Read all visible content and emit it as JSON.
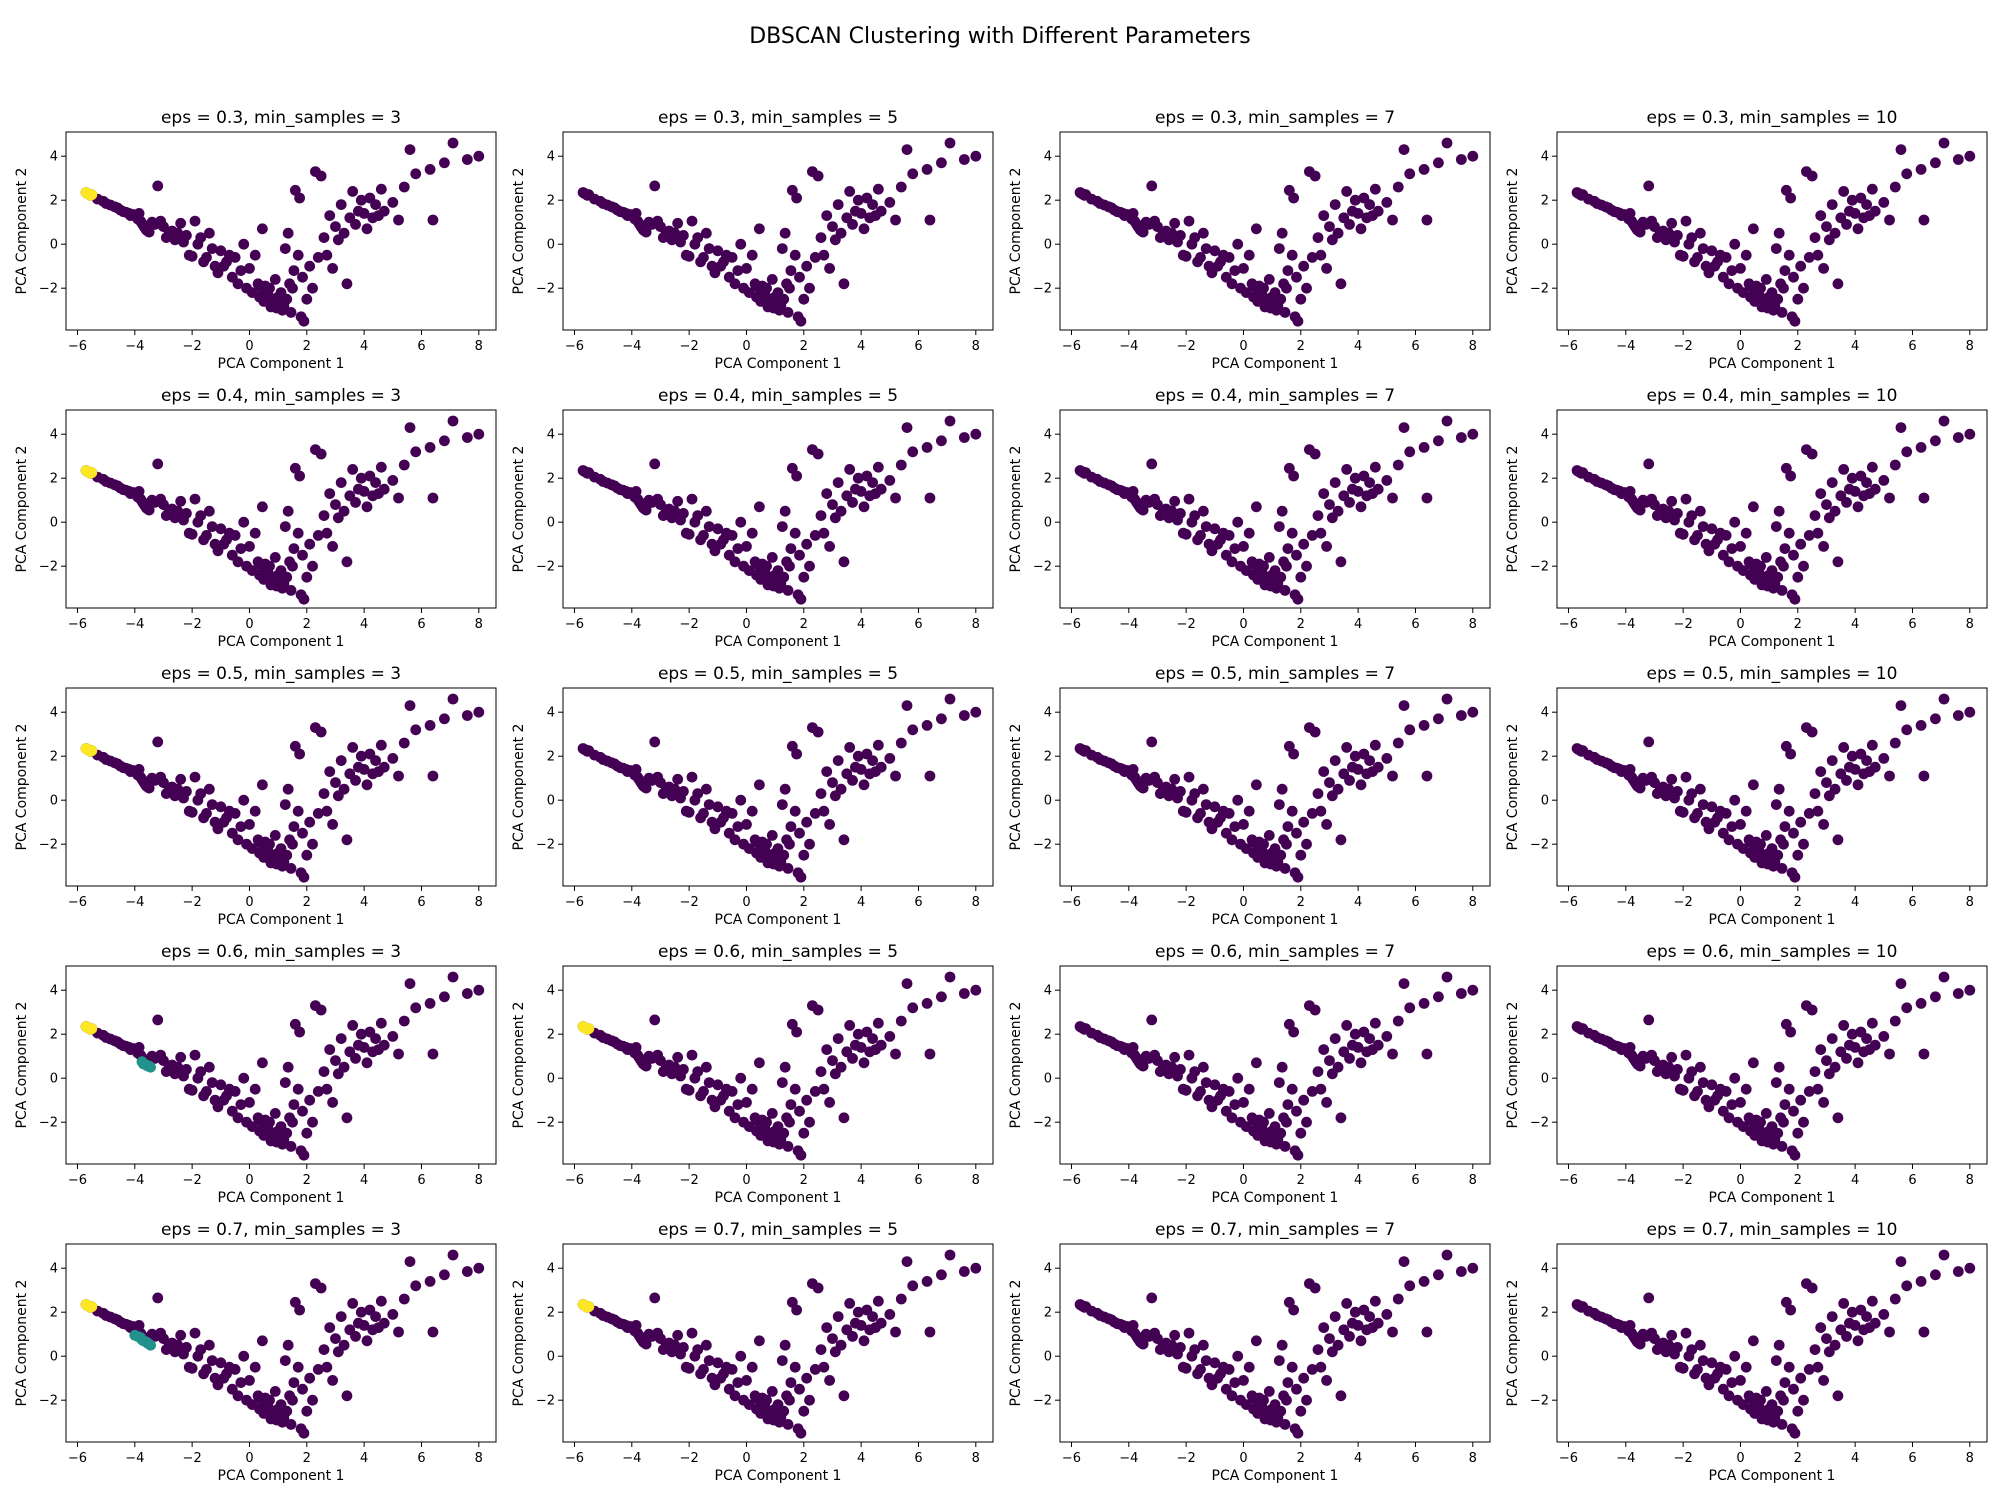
{
  "figure": {
    "title": "DBSCAN Clustering with Different Parameters"
  },
  "colors": {
    "noise_cluster": "#440154",
    "cluster_a": "#21918c",
    "cluster_b": "#fde725"
  },
  "chart_data": {
    "type": "scatter",
    "grid": false,
    "xlabel": "PCA Component 1",
    "ylabel": "PCA Component 2",
    "xlim": [
      -6.4,
      8.6
    ],
    "ylim": [
      -3.9,
      5.1
    ],
    "xticks": [
      -6,
      -4,
      -2,
      0,
      2,
      4,
      6,
      8
    ],
    "yticks": [
      -2,
      0,
      2,
      4
    ],
    "points": [
      [
        -5.7,
        2.35
      ],
      [
        -5.6,
        2.28
      ],
      [
        -5.5,
        2.25
      ],
      [
        -5.65,
        2.3
      ],
      [
        -5.55,
        2.22
      ],
      [
        -5.3,
        2.05
      ],
      [
        -5.1,
        1.95
      ],
      [
        -5.0,
        1.85
      ],
      [
        -4.85,
        1.78
      ],
      [
        -4.7,
        1.7
      ],
      [
        -4.6,
        1.65
      ],
      [
        -4.5,
        1.55
      ],
      [
        -4.4,
        1.48
      ],
      [
        -4.3,
        1.45
      ],
      [
        -4.2,
        1.4
      ],
      [
        -4.15,
        1.3
      ],
      [
        -4.05,
        1.35
      ],
      [
        -3.95,
        1.25
      ],
      [
        -3.9,
        1.15
      ],
      [
        -3.85,
        1.4
      ],
      [
        -3.8,
        1.05
      ],
      [
        -3.75,
        0.95
      ],
      [
        -3.7,
        0.85
      ],
      [
        -3.65,
        0.75
      ],
      [
        -3.6,
        0.65
      ],
      [
        -3.55,
        0.6
      ],
      [
        -3.5,
        0.55
      ],
      [
        -3.4,
        1.0
      ],
      [
        -3.3,
        0.9
      ],
      [
        -3.2,
        2.65
      ],
      [
        -3.1,
        1.05
      ],
      [
        -3.0,
        0.8
      ],
      [
        -2.9,
        0.3
      ],
      [
        -2.8,
        0.55
      ],
      [
        -2.7,
        0.6
      ],
      [
        -2.6,
        0.2
      ],
      [
        -2.5,
        0.5
      ],
      [
        -2.4,
        0.95
      ],
      [
        -2.3,
        0.1
      ],
      [
        -2.2,
        0.4
      ],
      [
        -2.1,
        -0.5
      ],
      [
        -2.0,
        -0.55
      ],
      [
        -1.9,
        1.05
      ],
      [
        -1.8,
        0.0
      ],
      [
        -1.7,
        0.3
      ],
      [
        -1.6,
        -0.8
      ],
      [
        -1.5,
        -0.6
      ],
      [
        -1.4,
        0.5
      ],
      [
        -1.3,
        -0.2
      ],
      [
        -1.2,
        -1.0
      ],
      [
        -1.1,
        -1.3
      ],
      [
        -1.0,
        -0.3
      ],
      [
        -0.9,
        -1.0
      ],
      [
        -0.8,
        -0.8
      ],
      [
        -0.7,
        -0.5
      ],
      [
        -0.6,
        -1.5
      ],
      [
        -0.5,
        -0.6
      ],
      [
        -0.4,
        -1.8
      ],
      [
        -0.3,
        -1.2
      ],
      [
        -0.2,
        0.0
      ],
      [
        -0.1,
        -2.0
      ],
      [
        0.0,
        -1.1
      ],
      [
        0.1,
        -2.2
      ],
      [
        0.2,
        -0.5
      ],
      [
        0.3,
        -1.8
      ],
      [
        0.35,
        -2.4
      ],
      [
        0.4,
        -1.95
      ],
      [
        0.45,
        0.7
      ],
      [
        0.5,
        -2.6
      ],
      [
        0.55,
        -1.9
      ],
      [
        0.6,
        -2.1
      ],
      [
        0.65,
        -2.3
      ],
      [
        0.7,
        -2.0
      ],
      [
        0.75,
        -2.85
      ],
      [
        0.8,
        -2.5
      ],
      [
        0.85,
        -2.7
      ],
      [
        0.9,
        -1.6
      ],
      [
        0.95,
        -2.9
      ],
      [
        1.0,
        -2.4
      ],
      [
        1.05,
        -2.6
      ],
      [
        1.1,
        -2.2
      ],
      [
        1.15,
        -3.0
      ],
      [
        1.2,
        -2.8
      ],
      [
        1.25,
        -0.2
      ],
      [
        1.3,
        -2.5
      ],
      [
        1.35,
        0.5
      ],
      [
        1.4,
        -1.8
      ],
      [
        1.45,
        -3.1
      ],
      [
        1.5,
        -2.0
      ],
      [
        1.55,
        -1.2
      ],
      [
        1.6,
        2.45
      ],
      [
        1.7,
        -0.5
      ],
      [
        1.75,
        2.1
      ],
      [
        1.8,
        -3.3
      ],
      [
        1.85,
        -1.5
      ],
      [
        1.9,
        -3.5
      ],
      [
        2.0,
        -2.5
      ],
      [
        2.1,
        -1.0
      ],
      [
        2.2,
        -2.0
      ],
      [
        2.3,
        3.3
      ],
      [
        2.4,
        -0.6
      ],
      [
        2.5,
        3.1
      ],
      [
        2.6,
        0.3
      ],
      [
        2.7,
        -0.5
      ],
      [
        2.8,
        1.3
      ],
      [
        2.9,
        -1.1
      ],
      [
        3.0,
        0.8
      ],
      [
        3.1,
        0.2
      ],
      [
        3.2,
        1.8
      ],
      [
        3.3,
        0.5
      ],
      [
        3.4,
        -1.8
      ],
      [
        3.5,
        1.2
      ],
      [
        3.6,
        2.4
      ],
      [
        3.7,
        0.9
      ],
      [
        3.8,
        1.5
      ],
      [
        3.9,
        2.0
      ],
      [
        4.0,
        1.4
      ],
      [
        4.1,
        0.7
      ],
      [
        4.2,
        2.1
      ],
      [
        4.3,
        1.2
      ],
      [
        4.4,
        1.8
      ],
      [
        4.5,
        1.3
      ],
      [
        4.6,
        2.5
      ],
      [
        4.7,
        1.5
      ],
      [
        5.0,
        1.9
      ],
      [
        5.2,
        1.1
      ],
      [
        5.4,
        2.6
      ],
      [
        5.6,
        4.3
      ],
      [
        5.8,
        3.2
      ],
      [
        6.3,
        3.4
      ],
      [
        6.4,
        1.1
      ],
      [
        6.8,
        3.7
      ],
      [
        7.1,
        4.6
      ],
      [
        7.6,
        3.85
      ],
      [
        8.0,
        4.0
      ]
    ],
    "panels": [
      {
        "title": "eps = 0.3, min_samples = 3",
        "highlights": [
          {
            "color": "cluster_b",
            "points": [
              [
                -5.7,
                2.35
              ],
              [
                -5.6,
                2.28
              ],
              [
                -5.5,
                2.25
              ],
              [
                -5.65,
                2.3
              ],
              [
                -5.55,
                2.22
              ]
            ]
          }
        ]
      },
      {
        "title": "eps = 0.3, min_samples = 5",
        "highlights": []
      },
      {
        "title": "eps = 0.3, min_samples = 7",
        "highlights": []
      },
      {
        "title": "eps = 0.3, min_samples = 10",
        "highlights": []
      },
      {
        "title": "eps = 0.4, min_samples = 3",
        "highlights": [
          {
            "color": "cluster_b",
            "points": [
              [
                -5.7,
                2.35
              ],
              [
                -5.6,
                2.28
              ],
              [
                -5.5,
                2.25
              ],
              [
                -5.65,
                2.3
              ],
              [
                -5.55,
                2.22
              ]
            ]
          }
        ]
      },
      {
        "title": "eps = 0.4, min_samples = 5",
        "highlights": []
      },
      {
        "title": "eps = 0.4, min_samples = 7",
        "highlights": []
      },
      {
        "title": "eps = 0.4, min_samples = 10",
        "highlights": []
      },
      {
        "title": "eps = 0.5, min_samples = 3",
        "highlights": [
          {
            "color": "cluster_b",
            "points": [
              [
                -5.7,
                2.35
              ],
              [
                -5.6,
                2.28
              ],
              [
                -5.5,
                2.25
              ],
              [
                -5.65,
                2.3
              ],
              [
                -5.55,
                2.22
              ]
            ]
          }
        ]
      },
      {
        "title": "eps = 0.5, min_samples = 5",
        "highlights": []
      },
      {
        "title": "eps = 0.5, min_samples = 7",
        "highlights": []
      },
      {
        "title": "eps = 0.5, min_samples = 10",
        "highlights": []
      },
      {
        "title": "eps = 0.6, min_samples = 3",
        "highlights": [
          {
            "color": "cluster_b",
            "points": [
              [
                -5.7,
                2.35
              ],
              [
                -5.6,
                2.28
              ],
              [
                -5.5,
                2.25
              ],
              [
                -5.65,
                2.3
              ],
              [
                -5.55,
                2.22
              ]
            ]
          },
          {
            "color": "cluster_a",
            "points": [
              [
                -3.75,
                0.75
              ],
              [
                -3.7,
                0.65
              ],
              [
                -3.6,
                0.6
              ],
              [
                -3.55,
                0.55
              ],
              [
                -3.5,
                0.55
              ],
              [
                -3.45,
                0.5
              ]
            ]
          }
        ]
      },
      {
        "title": "eps = 0.6, min_samples = 5",
        "highlights": [
          {
            "color": "cluster_b",
            "points": [
              [
                -5.7,
                2.35
              ],
              [
                -5.6,
                2.28
              ],
              [
                -5.5,
                2.25
              ],
              [
                -5.65,
                2.3
              ],
              [
                -5.55,
                2.22
              ]
            ]
          }
        ]
      },
      {
        "title": "eps = 0.6, min_samples = 7",
        "highlights": []
      },
      {
        "title": "eps = 0.6, min_samples = 10",
        "highlights": []
      },
      {
        "title": "eps = 0.7, min_samples = 3",
        "highlights": [
          {
            "color": "cluster_b",
            "points": [
              [
                -5.7,
                2.35
              ],
              [
                -5.6,
                2.28
              ],
              [
                -5.5,
                2.25
              ],
              [
                -5.65,
                2.3
              ],
              [
                -5.55,
                2.22
              ]
            ]
          },
          {
            "color": "cluster_a",
            "points": [
              [
                -4.0,
                0.95
              ],
              [
                -3.9,
                0.9
              ],
              [
                -3.8,
                0.85
              ],
              [
                -3.75,
                0.75
              ],
              [
                -3.7,
                0.7
              ],
              [
                -3.6,
                0.65
              ],
              [
                -3.55,
                0.6
              ],
              [
                -3.5,
                0.55
              ],
              [
                -3.45,
                0.5
              ]
            ]
          }
        ]
      },
      {
        "title": "eps = 0.7, min_samples = 5",
        "highlights": [
          {
            "color": "cluster_b",
            "points": [
              [
                -5.7,
                2.35
              ],
              [
                -5.6,
                2.28
              ],
              [
                -5.5,
                2.25
              ],
              [
                -5.65,
                2.3
              ],
              [
                -5.55,
                2.22
              ]
            ]
          }
        ]
      },
      {
        "title": "eps = 0.7, min_samples = 7",
        "highlights": []
      },
      {
        "title": "eps = 0.7, min_samples = 10",
        "highlights": []
      }
    ]
  }
}
